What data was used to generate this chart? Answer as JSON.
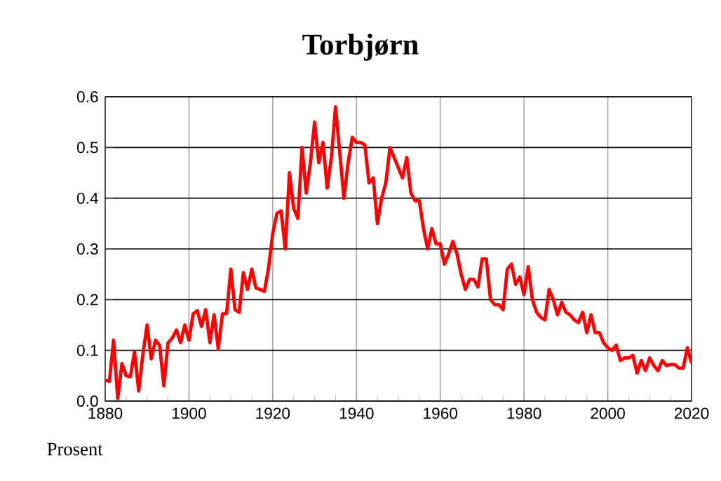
{
  "chart_data": {
    "type": "line",
    "title": "Torbjørn",
    "ylabel": "Prosent",
    "x": [
      1880,
      1881,
      1882,
      1883,
      1884,
      1885,
      1886,
      1887,
      1888,
      1889,
      1890,
      1891,
      1892,
      1893,
      1894,
      1895,
      1896,
      1897,
      1898,
      1899,
      1900,
      1901,
      1902,
      1903,
      1904,
      1905,
      1906,
      1907,
      1908,
      1909,
      1910,
      1911,
      1912,
      1913,
      1914,
      1915,
      1916,
      1917,
      1918,
      1919,
      1920,
      1921,
      1922,
      1923,
      1924,
      1925,
      1926,
      1927,
      1928,
      1929,
      1930,
      1931,
      1932,
      1933,
      1934,
      1935,
      1936,
      1937,
      1938,
      1939,
      1940,
      1941,
      1942,
      1943,
      1944,
      1945,
      1946,
      1947,
      1948,
      1949,
      1950,
      1951,
      1952,
      1953,
      1954,
      1955,
      1956,
      1957,
      1958,
      1959,
      1960,
      1961,
      1962,
      1963,
      1964,
      1965,
      1966,
      1967,
      1968,
      1969,
      1970,
      1971,
      1972,
      1973,
      1974,
      1975,
      1976,
      1977,
      1978,
      1979,
      1980,
      1981,
      1982,
      1983,
      1984,
      1985,
      1986,
      1987,
      1988,
      1989,
      1990,
      1991,
      1992,
      1993,
      1994,
      1995,
      1996,
      1997,
      1998,
      1999,
      2000,
      2001,
      2002,
      2003,
      2004,
      2005,
      2006,
      2007,
      2008,
      2009,
      2010,
      2011,
      2012,
      2013,
      2014,
      2015,
      2016,
      2017,
      2018,
      2019,
      2020
    ],
    "series": [
      {
        "color": "#ff0000",
        "values": [
          0.041,
          0.039,
          0.12,
          0.005,
          0.074,
          0.05,
          0.048,
          0.097,
          0.02,
          0.092,
          0.15,
          0.083,
          0.12,
          0.11,
          0.03,
          0.115,
          0.124,
          0.14,
          0.115,
          0.15,
          0.12,
          0.172,
          0.178,
          0.147,
          0.18,
          0.115,
          0.17,
          0.103,
          0.172,
          0.173,
          0.26,
          0.18,
          0.175,
          0.253,
          0.22,
          0.26,
          0.223,
          0.22,
          0.216,
          0.262,
          0.33,
          0.37,
          0.375,
          0.3,
          0.45,
          0.38,
          0.36,
          0.5,
          0.41,
          0.47,
          0.55,
          0.47,
          0.51,
          0.42,
          0.48,
          0.58,
          0.49,
          0.4,
          0.47,
          0.52,
          0.51,
          0.51,
          0.505,
          0.43,
          0.44,
          0.35,
          0.4,
          0.43,
          0.5,
          0.48,
          0.46,
          0.44,
          0.48,
          0.41,
          0.395,
          0.395,
          0.34,
          0.3,
          0.34,
          0.31,
          0.31,
          0.27,
          0.29,
          0.315,
          0.29,
          0.25,
          0.22,
          0.24,
          0.24,
          0.225,
          0.28,
          0.28,
          0.2,
          0.19,
          0.19,
          0.18,
          0.26,
          0.27,
          0.23,
          0.245,
          0.21,
          0.265,
          0.2,
          0.175,
          0.165,
          0.16,
          0.22,
          0.2,
          0.17,
          0.195,
          0.175,
          0.17,
          0.16,
          0.155,
          0.175,
          0.135,
          0.17,
          0.135,
          0.135,
          0.115,
          0.105,
          0.1,
          0.11,
          0.08,
          0.085,
          0.085,
          0.09,
          0.055,
          0.08,
          0.06,
          0.085,
          0.07,
          0.06,
          0.08,
          0.07,
          0.072,
          0.072,
          0.065,
          0.065,
          0.105,
          0.075
        ]
      }
    ],
    "xlim": [
      1880,
      2020
    ],
    "xticks": [
      1880,
      1900,
      1920,
      1940,
      1960,
      1980,
      2000,
      2020
    ],
    "ylim": [
      0,
      0.6
    ],
    "yticks": [
      {
        "value": 0,
        "label": "0.0"
      },
      0.1,
      0.2,
      0.3,
      0.4,
      0.5,
      0.6
    ],
    "grid": true,
    "marker": "none",
    "line_style": "solid"
  }
}
